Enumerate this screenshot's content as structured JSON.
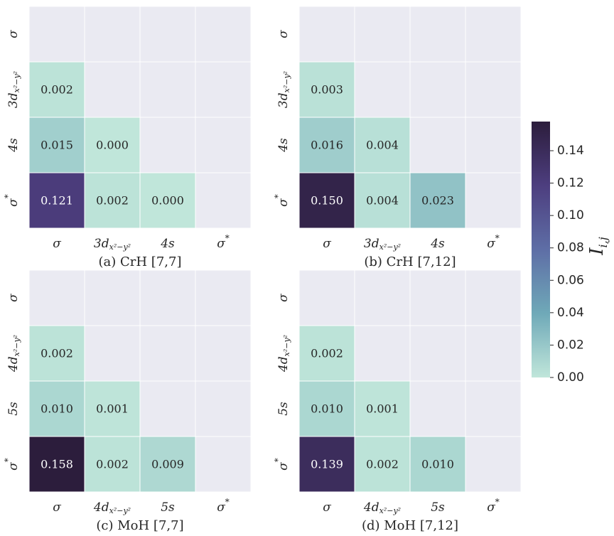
{
  "chart_data": [
    {
      "type": "heatmap",
      "caption": "(a) CrH [7,7]",
      "row_labels": [
        {
          "base": "σ",
          "sub": "",
          "sup": ""
        },
        {
          "base": "3d",
          "sub": "x²−y²",
          "sup": ""
        },
        {
          "base": "4s",
          "sub": "",
          "sup": ""
        },
        {
          "base": "σ",
          "sub": "",
          "sup": "*"
        }
      ],
      "col_labels": [
        {
          "base": "σ",
          "sub": "",
          "sup": ""
        },
        {
          "base": "3d",
          "sub": "x²−y²",
          "sup": ""
        },
        {
          "base": "4s",
          "sub": "",
          "sup": ""
        },
        {
          "base": "σ",
          "sub": "",
          "sup": "*"
        }
      ],
      "values": [
        [
          null,
          null,
          null,
          null
        ],
        [
          0.002,
          null,
          null,
          null
        ],
        [
          0.015,
          0.0,
          null,
          null
        ],
        [
          0.121,
          0.002,
          0.0,
          null
        ]
      ],
      "labels": [
        [
          null,
          null,
          null,
          null
        ],
        [
          "0.002",
          null,
          null,
          null
        ],
        [
          "0.015",
          "0.000",
          null,
          null
        ],
        [
          "0.121",
          "0.002",
          "0.000",
          null
        ]
      ]
    },
    {
      "type": "heatmap",
      "caption": "(b) CrH [7,12]",
      "row_labels": [
        {
          "base": "σ",
          "sub": "",
          "sup": ""
        },
        {
          "base": "3d",
          "sub": "x²−y²",
          "sup": ""
        },
        {
          "base": "4s",
          "sub": "",
          "sup": ""
        },
        {
          "base": "σ",
          "sub": "",
          "sup": "*"
        }
      ],
      "col_labels": [
        {
          "base": "σ",
          "sub": "",
          "sup": ""
        },
        {
          "base": "3d",
          "sub": "x²−y²",
          "sup": ""
        },
        {
          "base": "4s",
          "sub": "",
          "sup": ""
        },
        {
          "base": "σ",
          "sub": "",
          "sup": "*"
        }
      ],
      "values": [
        [
          null,
          null,
          null,
          null
        ],
        [
          0.003,
          null,
          null,
          null
        ],
        [
          0.016,
          0.004,
          null,
          null
        ],
        [
          0.15,
          0.004,
          0.023,
          null
        ]
      ],
      "labels": [
        [
          null,
          null,
          null,
          null
        ],
        [
          "0.003",
          null,
          null,
          null
        ],
        [
          "0.016",
          "0.004",
          null,
          null
        ],
        [
          "0.150",
          "0.004",
          "0.023",
          null
        ]
      ]
    },
    {
      "type": "heatmap",
      "caption": "(c) MoH [7,7]",
      "row_labels": [
        {
          "base": "σ",
          "sub": "",
          "sup": ""
        },
        {
          "base": "4d",
          "sub": "x²−y²",
          "sup": ""
        },
        {
          "base": "5s",
          "sub": "",
          "sup": ""
        },
        {
          "base": "σ",
          "sub": "",
          "sup": "*"
        }
      ],
      "col_labels": [
        {
          "base": "σ",
          "sub": "",
          "sup": ""
        },
        {
          "base": "4d",
          "sub": "x²−y²",
          "sup": ""
        },
        {
          "base": "5s",
          "sub": "",
          "sup": ""
        },
        {
          "base": "σ",
          "sub": "",
          "sup": "*"
        }
      ],
      "values": [
        [
          null,
          null,
          null,
          null
        ],
        [
          0.002,
          null,
          null,
          null
        ],
        [
          0.01,
          0.001,
          null,
          null
        ],
        [
          0.158,
          0.002,
          0.009,
          null
        ]
      ],
      "labels": [
        [
          null,
          null,
          null,
          null
        ],
        [
          "0.002",
          null,
          null,
          null
        ],
        [
          "0.010",
          "0.001",
          null,
          null
        ],
        [
          "0.158",
          "0.002",
          "0.009",
          null
        ]
      ]
    },
    {
      "type": "heatmap",
      "caption": "(d) MoH [7,12]",
      "row_labels": [
        {
          "base": "σ",
          "sub": "",
          "sup": ""
        },
        {
          "base": "4d",
          "sub": "x²−y²",
          "sup": ""
        },
        {
          "base": "5s",
          "sub": "",
          "sup": ""
        },
        {
          "base": "σ",
          "sub": "",
          "sup": "*"
        }
      ],
      "col_labels": [
        {
          "base": "σ",
          "sub": "",
          "sup": ""
        },
        {
          "base": "4d",
          "sub": "x²−y²",
          "sup": ""
        },
        {
          "base": "5s",
          "sub": "",
          "sup": ""
        },
        {
          "base": "σ",
          "sub": "",
          "sup": "*"
        }
      ],
      "values": [
        [
          null,
          null,
          null,
          null
        ],
        [
          0.002,
          null,
          null,
          null
        ],
        [
          0.01,
          0.001,
          null,
          null
        ],
        [
          0.139,
          0.002,
          0.01,
          null
        ]
      ],
      "labels": [
        [
          null,
          null,
          null,
          null
        ],
        [
          "0.002",
          null,
          null,
          null
        ],
        [
          "0.010",
          "0.001",
          null,
          null
        ],
        [
          "0.139",
          "0.002",
          "0.010",
          null
        ]
      ]
    }
  ],
  "colorbar": {
    "label_base": "I",
    "label_sub": "i,j",
    "range": [
      0.0,
      0.158
    ],
    "ticks": [
      0.0,
      0.02,
      0.04,
      0.06,
      0.08,
      0.1,
      0.12,
      0.14
    ],
    "tick_labels": [
      "0.00",
      "0.02",
      "0.04",
      "0.06",
      "0.08",
      "0.10",
      "0.12",
      "0.14"
    ],
    "colormap": [
      "#c0e6da",
      "#6fa9b8",
      "#5e6ea6",
      "#4d3e7f",
      "#2c1d3c"
    ]
  },
  "colors": {
    "masked_cell": "#eaeaf2",
    "grid_line": "#ffffff",
    "text_dark": "#262626",
    "text_light": "#ffffff"
  }
}
